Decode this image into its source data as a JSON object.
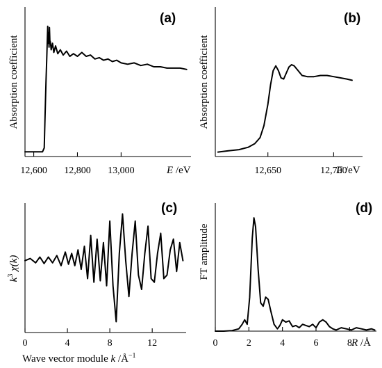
{
  "chart_data": [
    {
      "panel": "(a)",
      "type": "line",
      "ylabel": "Absorption coefficient",
      "xlabel_var": "E",
      "xlabel_unit": " /eV",
      "xlim": [
        12560,
        13320
      ],
      "ylim": [
        0,
        1.0
      ],
      "xticks": [
        12600,
        12800,
        13000
      ],
      "xtick_labels": [
        "12,600",
        "12,800",
        "13,000"
      ],
      "series": [
        {
          "x": [
            12560,
            12590,
            12620,
            12640,
            12648,
            12652,
            12656,
            12660,
            12664,
            12666,
            12668,
            12670,
            12672,
            12674,
            12676,
            12680,
            12686,
            12692,
            12700,
            12710,
            12722,
            12735,
            12750,
            12765,
            12782,
            12800,
            12820,
            12840,
            12860,
            12880,
            12900,
            12920,
            12940,
            12960,
            12980,
            13000,
            13030,
            13060,
            13090,
            13120,
            13150,
            13180,
            13210,
            13240,
            13270,
            13300
          ],
          "y": [
            0.02,
            0.02,
            0.02,
            0.02,
            0.05,
            0.3,
            0.55,
            0.75,
            0.98,
            0.85,
            0.93,
            0.82,
            0.97,
            0.87,
            0.86,
            0.8,
            0.85,
            0.78,
            0.83,
            0.77,
            0.8,
            0.76,
            0.79,
            0.75,
            0.77,
            0.75,
            0.78,
            0.75,
            0.76,
            0.73,
            0.74,
            0.72,
            0.73,
            0.71,
            0.72,
            0.7,
            0.69,
            0.7,
            0.68,
            0.69,
            0.67,
            0.67,
            0.66,
            0.66,
            0.66,
            0.65
          ]
        }
      ]
    },
    {
      "panel": "(b)",
      "type": "line",
      "ylabel": "Absorption coefficient",
      "xlabel_var": "E",
      "xlabel_unit": " /eV",
      "xlim": [
        12610,
        12722
      ],
      "ylim": [
        0,
        1.0
      ],
      "xticks": [
        12650,
        12700
      ],
      "xtick_labels": [
        "12,650",
        "12,700"
      ],
      "series": [
        {
          "x": [
            12612,
            12620,
            12628,
            12635,
            12640,
            12644,
            12647,
            12650,
            12652,
            12654,
            12656,
            12658,
            12660,
            12662,
            12664,
            12666,
            12668,
            12670,
            12673,
            12676,
            12680,
            12685,
            12690,
            12695,
            12700,
            12705,
            12710,
            12714
          ],
          "y": [
            0.02,
            0.03,
            0.04,
            0.06,
            0.09,
            0.14,
            0.24,
            0.42,
            0.58,
            0.7,
            0.74,
            0.7,
            0.64,
            0.63,
            0.68,
            0.73,
            0.75,
            0.74,
            0.7,
            0.66,
            0.65,
            0.65,
            0.66,
            0.66,
            0.65,
            0.64,
            0.63,
            0.62
          ]
        }
      ]
    },
    {
      "panel": "(c)",
      "type": "line",
      "ylabel_main": "k",
      "ylabel_sup": "3",
      "ylabel_rest": " χ(k)",
      "xlabel_prefix": "Wave vector module ",
      "xlabel_var": "k",
      "xlabel_unit": " /Å",
      "xlabel_sup": "−1",
      "xlim": [
        0,
        15.2
      ],
      "ylim": [
        -1.0,
        0.8
      ],
      "xticks": [
        0,
        4,
        8,
        12
      ],
      "xtick_labels": [
        "0",
        "4",
        "8",
        "12"
      ],
      "series": [
        {
          "x": [
            0,
            0.5,
            1.0,
            1.4,
            1.8,
            2.2,
            2.6,
            3.0,
            3.4,
            3.8,
            4.1,
            4.4,
            4.7,
            5.0,
            5.3,
            5.6,
            5.9,
            6.2,
            6.5,
            6.8,
            7.1,
            7.4,
            7.7,
            8.0,
            8.3,
            8.6,
            8.9,
            9.2,
            9.5,
            9.8,
            10.1,
            10.4,
            10.7,
            11.0,
            11.3,
            11.6,
            11.9,
            12.2,
            12.5,
            12.8,
            13.1,
            13.4,
            13.7,
            14.0,
            14.3,
            14.6,
            14.9
          ],
          "y": [
            0,
            0.03,
            -0.03,
            0.05,
            -0.04,
            0.05,
            -0.03,
            0.07,
            -0.07,
            0.12,
            -0.05,
            0.1,
            -0.07,
            0.15,
            -0.12,
            0.2,
            -0.25,
            0.35,
            -0.3,
            0.3,
            -0.28,
            0.25,
            -0.35,
            0.55,
            -0.35,
            -0.85,
            0.1,
            0.65,
            0.0,
            -0.5,
            0.1,
            0.55,
            -0.2,
            -0.4,
            0.1,
            0.48,
            -0.25,
            -0.3,
            0.1,
            0.38,
            -0.25,
            -0.2,
            0.15,
            0.3,
            -0.15,
            0.25,
            0.0
          ]
        }
      ]
    },
    {
      "panel": "(d)",
      "type": "line",
      "ylabel": "FT amplitude",
      "xlabel_var": "R",
      "xlabel_unit": " /Å",
      "xlim": [
        0,
        9.6
      ],
      "ylim": [
        0,
        1.05
      ],
      "xticks": [
        0,
        2,
        4,
        6,
        8
      ],
      "xtick_labels": [
        "0",
        "2",
        "4",
        "6",
        "8"
      ],
      "series": [
        {
          "x": [
            0,
            0.5,
            1.0,
            1.4,
            1.6,
            1.75,
            1.9,
            2.05,
            2.2,
            2.3,
            2.4,
            2.55,
            2.7,
            2.85,
            3.0,
            3.15,
            3.3,
            3.5,
            3.7,
            3.85,
            4.0,
            4.2,
            4.4,
            4.6,
            4.8,
            5.0,
            5.2,
            5.4,
            5.6,
            5.8,
            6.0,
            6.2,
            6.4,
            6.6,
            6.8,
            7.0,
            7.2,
            7.5,
            7.8,
            8.1,
            8.4,
            8.7,
            9.0,
            9.3,
            9.5
          ],
          "y": [
            0,
            0,
            0.005,
            0.02,
            0.06,
            0.1,
            0.06,
            0.3,
            0.82,
            1.0,
            0.92,
            0.55,
            0.25,
            0.22,
            0.3,
            0.28,
            0.18,
            0.06,
            0.02,
            0.05,
            0.1,
            0.08,
            0.09,
            0.04,
            0.05,
            0.03,
            0.06,
            0.05,
            0.04,
            0.06,
            0.03,
            0.08,
            0.1,
            0.08,
            0.04,
            0.02,
            0.01,
            0.03,
            0.02,
            0.01,
            0.03,
            0.02,
            0.01,
            0.02,
            0.01
          ]
        }
      ]
    }
  ]
}
